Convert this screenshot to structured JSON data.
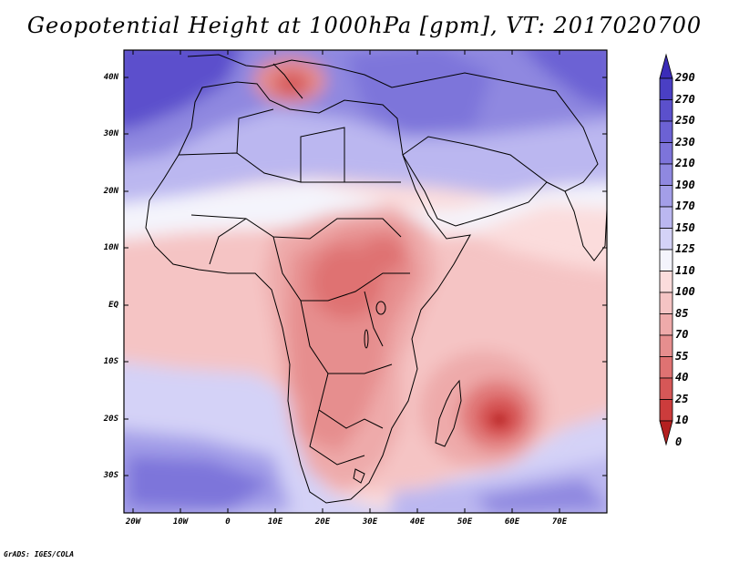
{
  "title": "Geopotential Height at 1000hPa [gpm], VT: 2017020700",
  "credit": "GrADS: IGES/COLA",
  "map": {
    "lat_ticks": [
      "40N",
      "30N",
      "20N",
      "10N",
      "EQ",
      "10S",
      "20S",
      "30S"
    ],
    "lon_ticks": [
      "20W",
      "10W",
      "0",
      "10E",
      "20E",
      "30E",
      "40E",
      "50E",
      "60E",
      "70E"
    ]
  },
  "colorbar": {
    "levels": [
      "290",
      "270",
      "250",
      "230",
      "210",
      "190",
      "170",
      "150",
      "125",
      "110",
      "100",
      "85",
      "70",
      "55",
      "40",
      "25",
      "10",
      "0"
    ],
    "colors": [
      "#3b2cb8",
      "#4a3fc4",
      "#5b50cc",
      "#6c62d4",
      "#7d74da",
      "#8f88e0",
      "#a39ee8",
      "#bbb7f0",
      "#d4d2f7",
      "#f4f4fc",
      "#fbdcdc",
      "#f5c4c4",
      "#eeaaaa",
      "#e68e8e",
      "#df7272",
      "#d65757",
      "#cc3c3c",
      "#b42020"
    ]
  }
}
